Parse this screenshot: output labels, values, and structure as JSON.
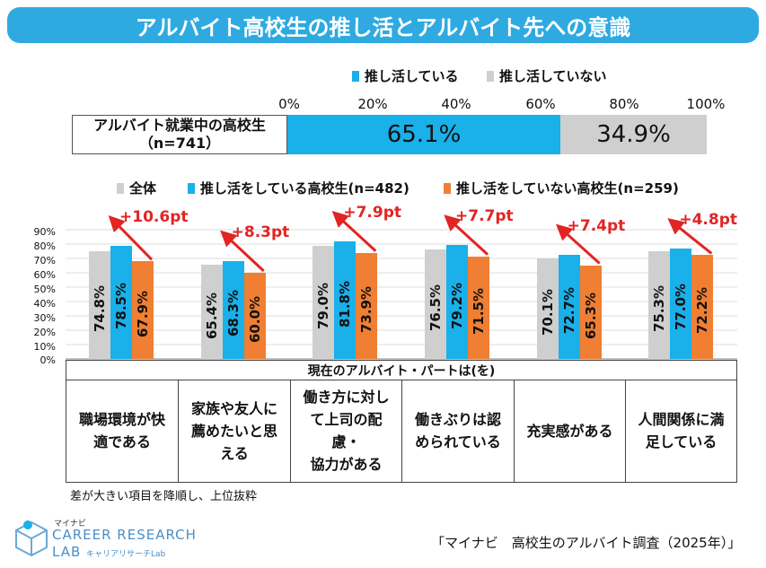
{
  "title": "アルバイト高校生の推し活とアルバイト先への意識",
  "top_legend": {
    "item1": {
      "label": "推し活している",
      "color": "#1ab0ea"
    },
    "item2": {
      "label": "推し活していない",
      "color": "#cfcfcf"
    }
  },
  "stacked_bar": {
    "row_label_line1": "アルバイト就業中の高校生",
    "row_label_line2": "（n=741）",
    "ticks": [
      "0%",
      "20%",
      "40%",
      "60%",
      "80%",
      "100%"
    ],
    "seg1_label": "65.1%",
    "seg2_label": "34.9%"
  },
  "bar_legend": {
    "item1": {
      "label": "全体",
      "color": "#cfcfcf"
    },
    "item2": {
      "label": "推し活をしている高校生(n=482)",
      "color": "#1ab0ea"
    },
    "item3": {
      "label": "推し活をしていない高校生(n=259)",
      "color": "#f07f33"
    }
  },
  "y_axis_labels": [
    "90%",
    "80%",
    "70%",
    "60%",
    "50%",
    "40%",
    "30%",
    "20%",
    "10%",
    "0%"
  ],
  "table": {
    "header": "現在のアルバイト・パートは(を)",
    "cells": [
      {
        "line1": "職場環境が快",
        "line2": "適である",
        "line3": ""
      },
      {
        "line1": "家族や友人に",
        "line2": "薦めたいと思",
        "line3": "える"
      },
      {
        "line1": "働き方に対し",
        "line2": "て上司の配慮・",
        "line3": "協力がある"
      },
      {
        "line1": "働きぶりは認",
        "line2": "められている",
        "line3": ""
      },
      {
        "line1": "充実感がある",
        "line2": "",
        "line3": ""
      },
      {
        "line1": "人間関係に満",
        "line2": "足している",
        "line3": ""
      }
    ]
  },
  "note": "差が大きい項目を降順し、上位抜粋",
  "source": "「マイナビ　高校生のアルバイト調査（2025年）」",
  "logo": {
    "small": "マイナビ",
    "line1": "CAREER RESEARCH",
    "line2": "LAB",
    "sub": "キャリアリサーチLab"
  },
  "chart_data": [
    {
      "type": "bar",
      "orientation": "horizontal-stacked",
      "title": "",
      "categories": [
        "アルバイト就業中の高校生（n=741）"
      ],
      "series": [
        {
          "name": "推し活している",
          "values": [
            65.1
          ],
          "color": "#1ab0ea"
        },
        {
          "name": "推し活していない",
          "values": [
            34.9
          ],
          "color": "#cfcfcf"
        }
      ],
      "xlim": [
        0,
        100
      ],
      "xticks": [
        "0%",
        "20%",
        "40%",
        "60%",
        "80%",
        "100%"
      ]
    },
    {
      "type": "bar",
      "orientation": "vertical-grouped",
      "categories": [
        "職場環境が快適である",
        "家族や友人に薦めたいと思える",
        "働き方に対して上司の配慮・協力がある",
        "働きぶりは認められている",
        "充実感がある",
        "人間関係に満足している"
      ],
      "series": [
        {
          "name": "全体",
          "values": [
            74.8,
            65.4,
            79.0,
            76.5,
            70.1,
            75.3
          ],
          "labels": [
            "74.8%",
            "65.4%",
            "79.0%",
            "76.5%",
            "70.1%",
            "75.3%"
          ],
          "color": "#cfcfcf"
        },
        {
          "name": "推し活をしている高校生(n=482)",
          "values": [
            78.5,
            68.3,
            81.8,
            79.2,
            72.7,
            77.0
          ],
          "labels": [
            "78.5%",
            "68.3%",
            "81.8%",
            "79.2%",
            "72.7%",
            "77.0%"
          ],
          "color": "#1ab0ea"
        },
        {
          "name": "推し活をしていない高校生(n=259)",
          "values": [
            67.9,
            60.0,
            73.9,
            71.5,
            65.3,
            72.2
          ],
          "labels": [
            "67.9%",
            "60.0%",
            "73.9%",
            "71.5%",
            "65.3%",
            "72.2%"
          ],
          "color": "#f07f33"
        }
      ],
      "annotations": [
        "+10.6pt",
        "+8.3pt",
        "+7.9pt",
        "+7.7pt",
        "+7.4pt",
        "+4.8pt"
      ],
      "annotation_color": "#e22424",
      "ylim": [
        0,
        90
      ],
      "yticks": [
        "0%",
        "10%",
        "20%",
        "30%",
        "40%",
        "50%",
        "60%",
        "70%",
        "80%",
        "90%"
      ],
      "grid": true
    }
  ]
}
